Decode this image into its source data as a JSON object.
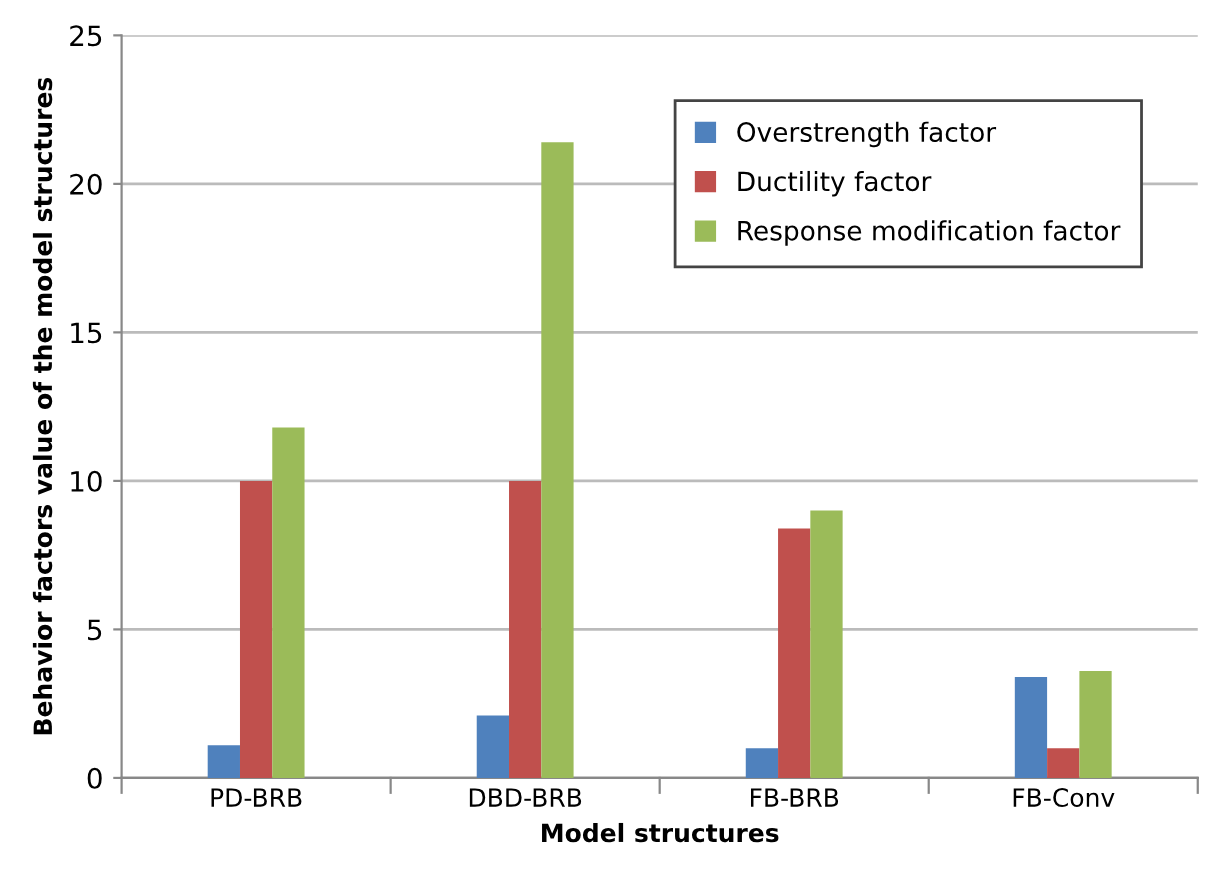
{
  "chart_data": {
    "type": "bar",
    "xlabel": "Model structures",
    "ylabel": "Behavior factors value of the model structures",
    "categories": [
      "PD-BRB",
      "DBD-BRB",
      "FB-BRB",
      "FB-Conv"
    ],
    "series": [
      {
        "name": "Overstrength factor",
        "color": "#4f81bd",
        "values": [
          1.1,
          2.1,
          1.0,
          3.4
        ]
      },
      {
        "name": "Ductility factor",
        "color": "#c0504d",
        "values": [
          10,
          10,
          8.4,
          1.0
        ]
      },
      {
        "name": "Response modification factor",
        "color": "#9bbb59",
        "values": [
          11.8,
          21.4,
          9.0,
          3.6
        ]
      }
    ],
    "ylim": [
      0,
      25
    ],
    "yticks": [
      0,
      5,
      10,
      15,
      20,
      25
    ],
    "grid": "y",
    "legend": "top right"
  }
}
